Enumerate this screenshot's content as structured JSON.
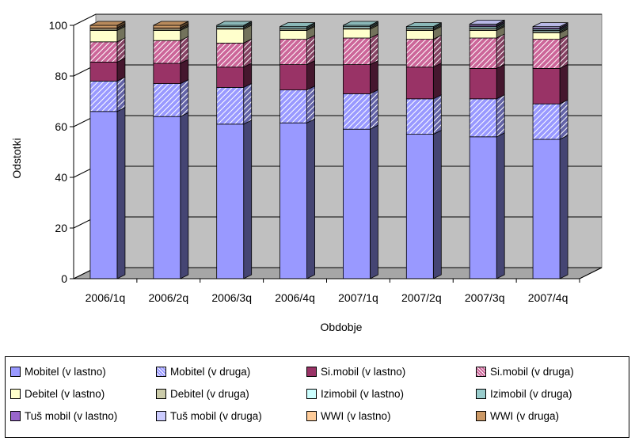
{
  "chart_data": {
    "type": "bar",
    "stacked": true,
    "three_d": true,
    "ylabel": "Odstotki",
    "xlabel": "Obdobje",
    "ylim": [
      0,
      100
    ],
    "yticks": [
      "0",
      "20",
      "40",
      "60",
      "80",
      "100"
    ],
    "grid": true,
    "legend_position": "bottom",
    "categories": [
      "2006/1q",
      "2006/2q",
      "2006/3q",
      "2006/4q",
      "2007/1q",
      "2007/2q",
      "2007/3q",
      "2007/4q"
    ],
    "series": [
      {
        "name": "Mobitel (v lastno)",
        "color": "#9999ff",
        "pattern": "solid",
        "values": [
          66,
          64,
          61,
          61.5,
          59,
          57,
          56,
          55
        ]
      },
      {
        "name": "Mobitel (v druga)",
        "color": "#9999ff",
        "pattern": "hatch",
        "values": [
          12,
          13,
          14.5,
          13,
          14,
          14,
          15,
          14
        ]
      },
      {
        "name": "Si.mobil (v lastno)",
        "color": "#993366",
        "pattern": "solid",
        "values": [
          7.5,
          8,
          8,
          10,
          11.5,
          12.5,
          12,
          14
        ]
      },
      {
        "name": "Si.mobil (v druga)",
        "color": "#cc6699",
        "pattern": "hatch",
        "values": [
          8,
          9,
          9.5,
          10,
          10.5,
          11,
          12,
          11.5
        ]
      },
      {
        "name": "Debitel (v lastno)",
        "color": "#ffffcc",
        "pattern": "solid",
        "values": [
          4.5,
          4,
          5.5,
          3.5,
          3.5,
          3.5,
          3,
          2.5
        ]
      },
      {
        "name": "Debitel (v druga)",
        "color": "#ccccaa",
        "pattern": "solid",
        "values": [
          0.5,
          0.5,
          0.5,
          0.5,
          0.5,
          0.5,
          0.5,
          0.5
        ]
      },
      {
        "name": "Izimobil (v lastno)",
        "color": "#ccffff",
        "pattern": "solid",
        "values": [
          0,
          0,
          0.5,
          0.5,
          0.5,
          0.5,
          0.5,
          0.5
        ]
      },
      {
        "name": "Izimobil (v druga)",
        "color": "#99cccc",
        "pattern": "solid",
        "values": [
          0,
          0,
          0.5,
          0.5,
          0.5,
          0.5,
          0.5,
          0.5
        ]
      },
      {
        "name": "Tuš mobil (v lastno)",
        "color": "#9966cc",
        "pattern": "solid",
        "values": [
          0,
          0,
          0,
          0,
          0,
          0,
          0.5,
          0.5
        ]
      },
      {
        "name": "Tuš mobil (v druga)",
        "color": "#ccccff",
        "pattern": "solid",
        "values": [
          0,
          0,
          0,
          0,
          0,
          0,
          0.5,
          0.5
        ]
      },
      {
        "name": "WWI (v lastno)",
        "color": "#ffcc99",
        "pattern": "solid",
        "values": [
          0.5,
          0.5,
          0,
          0,
          0,
          0,
          0,
          0
        ]
      },
      {
        "name": "WWI (v druga)",
        "color": "#cc9966",
        "pattern": "solid",
        "values": [
          1,
          1,
          0,
          0,
          0,
          0,
          0,
          0
        ]
      }
    ]
  },
  "legend": {
    "items": [
      {
        "label": "Mobitel (v lastno)",
        "color": "#9999ff"
      },
      {
        "label": "Mobitel (v druga)",
        "color": "#9999ff"
      },
      {
        "label": "Si.mobil (v lastno)",
        "color": "#993366"
      },
      {
        "label": "Si.mobil (v druga)",
        "color": "#cc6699"
      },
      {
        "label": "Debitel (v lastno)",
        "color": "#ffffcc"
      },
      {
        "label": "Debitel (v druga)",
        "color": "#ccccaa"
      },
      {
        "label": "Izimobil (v lastno)",
        "color": "#ccffff"
      },
      {
        "label": "Izimobil (v druga)",
        "color": "#99cccc"
      },
      {
        "label": "Tuš mobil (v lastno)",
        "color": "#9966cc"
      },
      {
        "label": "Tuš mobil (v druga)",
        "color": "#ccccff"
      },
      {
        "label": "WWI (v lastno)",
        "color": "#ffcc99"
      },
      {
        "label": "WWI (v druga)",
        "color": "#cc9966"
      }
    ]
  }
}
